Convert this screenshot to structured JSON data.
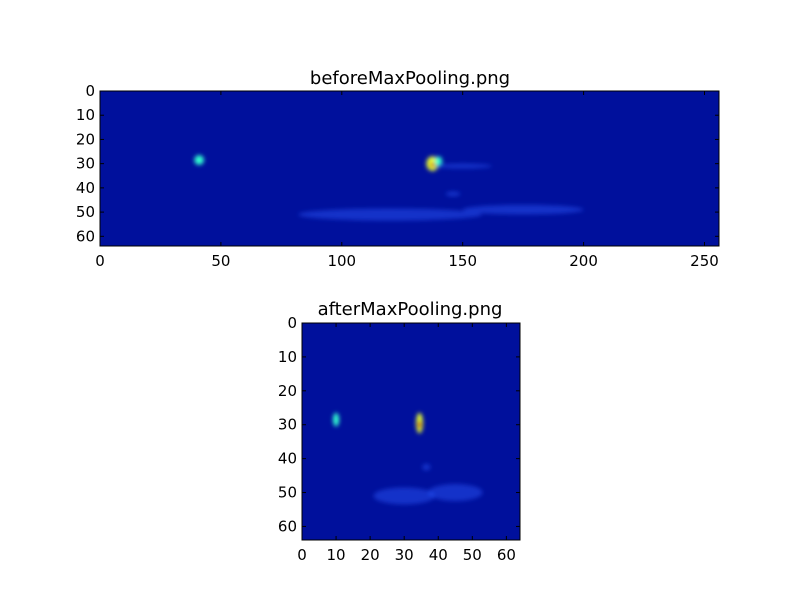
{
  "colors": {
    "low": "#00109c",
    "mid": "#2a5cff",
    "cyan": "#30ffd0",
    "yellow": "#e8ff30",
    "red": "#c80000",
    "frame": "#000000"
  },
  "chart_data": [
    {
      "type": "heatmap",
      "title": "beforeMaxPooling.png",
      "colormap": "jet",
      "xlim": [
        0,
        256
      ],
      "ylim": [
        64,
        0
      ],
      "xticks": [
        0,
        50,
        100,
        150,
        200,
        250
      ],
      "yticks": [
        0,
        10,
        20,
        30,
        40,
        50,
        60
      ],
      "hotspots": [
        {
          "x": 41,
          "y": 28.5,
          "rx": 2,
          "ry": 2,
          "level": "cyan"
        },
        {
          "x": 137.5,
          "y": 30,
          "rx": 2.5,
          "ry": 3,
          "level": "yellow"
        },
        {
          "x": 137.5,
          "y": 30.5,
          "rx": 0.8,
          "ry": 1,
          "level": "red"
        },
        {
          "x": 140,
          "y": 29,
          "rx": 1.5,
          "ry": 2,
          "level": "cyan"
        },
        {
          "x": 146,
          "y": 42.5,
          "rx": 3,
          "ry": 1,
          "level": "mid"
        },
        {
          "x": 150,
          "y": 31,
          "rx": 12,
          "ry": 1,
          "level": "mid"
        },
        {
          "x": 120,
          "y": 51,
          "rx": 38,
          "ry": 2.5,
          "level": "mid"
        },
        {
          "x": 175,
          "y": 49,
          "rx": 25,
          "ry": 2,
          "level": "mid"
        }
      ]
    },
    {
      "type": "heatmap",
      "title": "afterMaxPooling.png",
      "colormap": "jet",
      "xlim": [
        0,
        64
      ],
      "ylim": [
        64,
        0
      ],
      "xticks": [
        0,
        10,
        20,
        30,
        40,
        50,
        60
      ],
      "yticks": [
        0,
        10,
        20,
        30,
        40,
        50,
        60
      ],
      "hotspots": [
        {
          "x": 10,
          "y": 28.5,
          "rx": 0.9,
          "ry": 2,
          "level": "cyan"
        },
        {
          "x": 34.5,
          "y": 29.5,
          "rx": 1,
          "ry": 3,
          "level": "yellow"
        },
        {
          "x": 34.5,
          "y": 30,
          "rx": 0.5,
          "ry": 1.2,
          "level": "red"
        },
        {
          "x": 36.5,
          "y": 42.5,
          "rx": 1.2,
          "ry": 1,
          "level": "mid"
        },
        {
          "x": 30,
          "y": 51,
          "rx": 9,
          "ry": 2.5,
          "level": "mid"
        },
        {
          "x": 45,
          "y": 50,
          "rx": 8,
          "ry": 2.5,
          "level": "mid"
        }
      ]
    }
  ]
}
